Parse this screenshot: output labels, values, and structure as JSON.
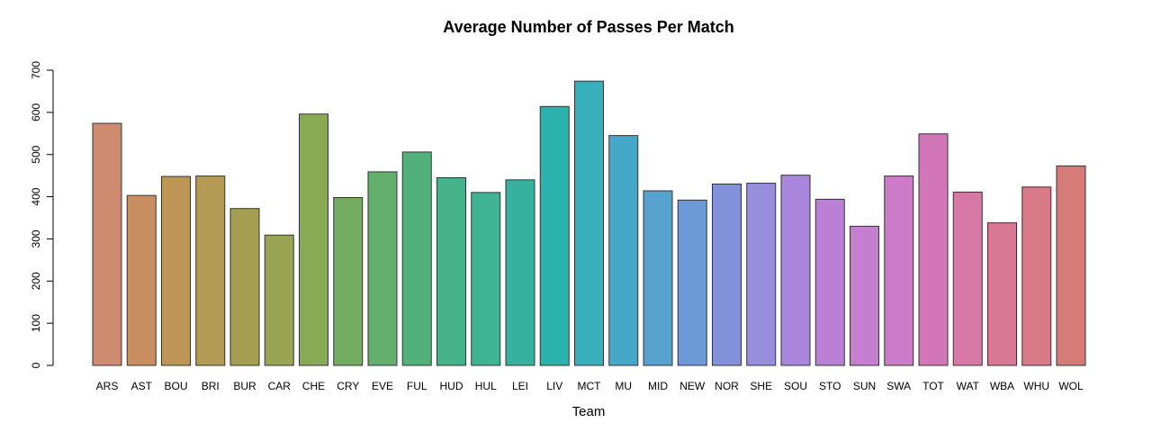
{
  "chart_data": {
    "type": "bar",
    "title": "Average Number of Passes Per Match",
    "xlabel": "Team",
    "ylabel": "",
    "ylim": [
      0,
      700
    ],
    "yticks": [
      0,
      100,
      200,
      300,
      400,
      500,
      600,
      700
    ],
    "grid": false,
    "categories": [
      "ARS",
      "AST",
      "BOU",
      "BRI",
      "BUR",
      "CAR",
      "CHE",
      "CRY",
      "EVE",
      "FUL",
      "HUD",
      "HUL",
      "LEI",
      "LIV",
      "MCT",
      "MU",
      "MID",
      "NEW",
      "NOR",
      "SHE",
      "SOU",
      "STO",
      "SUN",
      "SWA",
      "TOT",
      "WAT",
      "WBA",
      "WHU",
      "WOL"
    ],
    "values": [
      574,
      403,
      448,
      449,
      372,
      309,
      596,
      398,
      459,
      506,
      445,
      410,
      440,
      614,
      674,
      545,
      414,
      392,
      430,
      432,
      451,
      394,
      330,
      449,
      549,
      411,
      338,
      423,
      473
    ],
    "colors": [
      "#cf8b70",
      "#c98e5f",
      "#bd9556",
      "#b39b55",
      "#a49e52",
      "#98a451",
      "#88aa55",
      "#72ad62",
      "#63af6d",
      "#52b17b",
      "#46b289",
      "#40b393",
      "#36b19e",
      "#2ab3ac",
      "#38b0bc",
      "#46a8c8",
      "#57a1ce",
      "#6d99d6",
      "#8391da",
      "#978fdc",
      "#aa87dc",
      "#ba80d6",
      "#c57ed0",
      "#cc7bc8",
      "#d176b8",
      "#d778a6",
      "#da7995",
      "#d97a88",
      "#d67c78"
    ]
  }
}
